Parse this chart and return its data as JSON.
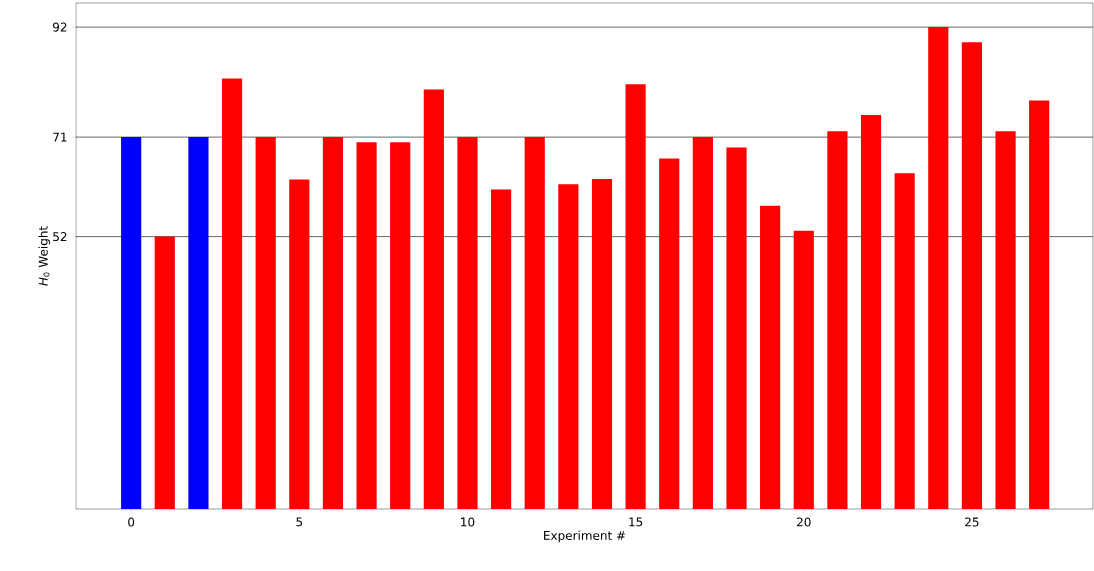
{
  "chart_data": {
    "type": "bar",
    "xlabel": "Experiment #",
    "ylabel": "*H*$_{0}$ Weight",
    "x": [
      0,
      1,
      2,
      3,
      4,
      5,
      6,
      7,
      8,
      9,
      10,
      11,
      12,
      13,
      14,
      15,
      16,
      17,
      18,
      19,
      20,
      21,
      22,
      23,
      24,
      25,
      26,
      27
    ],
    "values": [
      71,
      52,
      71,
      82.2,
      71,
      62.9,
      71,
      70,
      70,
      80.1,
      71,
      61,
      71,
      62,
      63,
      81.1,
      66.9,
      71,
      69,
      57.9,
      53.1,
      72.1,
      75.2,
      64.1,
      92,
      89.1,
      72.1,
      78
    ],
    "colors": [
      "#0000ff",
      "#ff0000",
      "#0000ff",
      "#ff0000",
      "#ff0000",
      "#ff0000",
      "#ff0000",
      "#ff0000",
      "#ff0000",
      "#ff0000",
      "#ff0000",
      "#ff0000",
      "#ff0000",
      "#ff0000",
      "#ff0000",
      "#ff0000",
      "#ff0000",
      "#ff0000",
      "#ff0000",
      "#ff0000",
      "#ff0000",
      "#ff0000",
      "#ff0000",
      "#ff0000",
      "#ff0000",
      "#ff0000",
      "#ff0000",
      "#ff0000"
    ],
    "xlim": [
      -1.64,
      28.6
    ],
    "xticks": [
      0,
      5,
      10,
      15,
      20,
      25
    ],
    "ylim": [
      0,
      96.6
    ],
    "yticks": [
      52,
      71,
      92
    ],
    "grid": "y"
  }
}
